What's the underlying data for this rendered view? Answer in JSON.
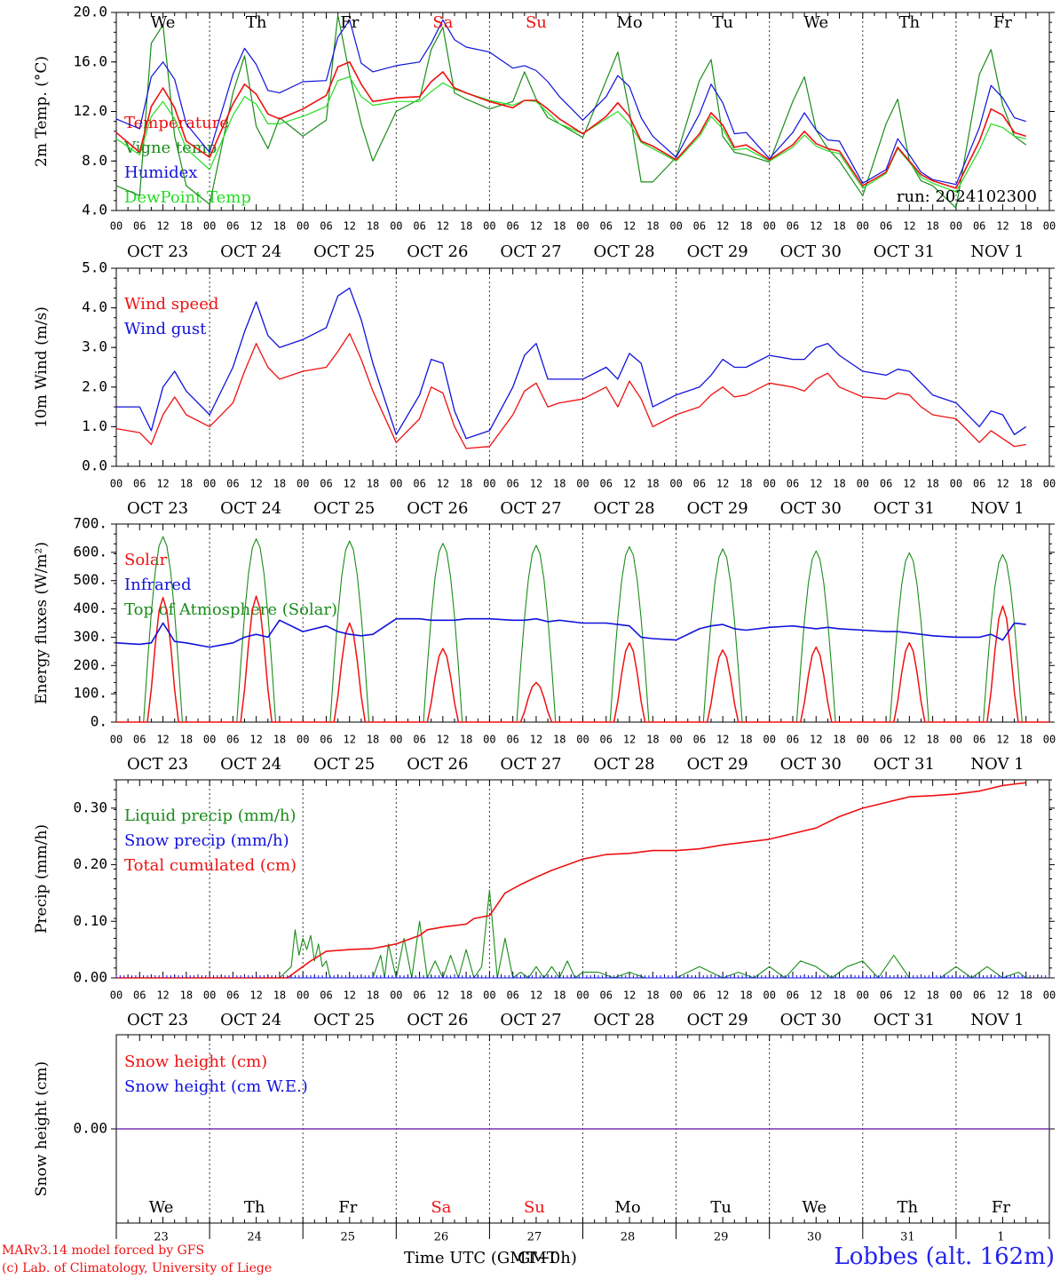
{
  "colors": {
    "red": "#ee1111",
    "green": "#1a8c1a",
    "blue": "#1111dd",
    "lime": "#22dd22",
    "purple": "#7733aa",
    "axis": "#000000"
  },
  "footer": {
    "credit1": "MARv3.14 model forced by GFS",
    "credit2": "(c) Lab. of Climatology, University of Liege",
    "xlabel": "Time UTC (GMT+0h)",
    "xlabel_overlay": "GMT",
    "station": "Lobbes (alt. 162m)"
  },
  "time_axis": {
    "hour_ticks": [
      "00",
      "06",
      "12",
      "18"
    ],
    "end_tick": "00",
    "dates": [
      "OCT 23",
      "OCT 24",
      "OCT 25",
      "OCT 26",
      "OCT 27",
      "OCT 28",
      "OCT 29",
      "OCT 30",
      "OCT 31",
      "NOV  1"
    ],
    "weekdays": [
      "We",
      "Th",
      "Fr",
      "Sa",
      "Su",
      "Mo",
      "Tu",
      "We",
      "Th",
      "Fr"
    ],
    "weekend_days": [
      "Sa",
      "Su"
    ],
    "day_numbers": [
      "23",
      "24",
      "25",
      "26",
      "27",
      "28",
      "29",
      "30",
      "31",
      "1"
    ]
  },
  "chart_data": [
    {
      "type": "line",
      "ylabel": "2m Temp. (°C)",
      "ylim": [
        4,
        20
      ],
      "yticks": [
        "4.0",
        "8.0",
        "12.0",
        "16.0",
        "20.0"
      ],
      "run_label": "run: 2024102300",
      "legend": [
        "Temperature",
        "Vigne temp",
        "Humidex",
        "DewPoint Temp"
      ],
      "x_hours": [
        0,
        6,
        9,
        12,
        15,
        18,
        24,
        30,
        33,
        36,
        39,
        42,
        48,
        54,
        57,
        60,
        63,
        66,
        72,
        78,
        81,
        84,
        87,
        90,
        96,
        102,
        105,
        108,
        111,
        114,
        120,
        126,
        129,
        132,
        135,
        138,
        144,
        150,
        153,
        156,
        159,
        162,
        168,
        174,
        177,
        180,
        183,
        186,
        192,
        198,
        201,
        204,
        207,
        210,
        216,
        222,
        225,
        228,
        231,
        234
      ],
      "series": [
        {
          "name": "Temperature",
          "color": "red",
          "values": [
            10.3,
            8.7,
            12.4,
            13.9,
            12.3,
            9.6,
            8.3,
            12.6,
            14.2,
            13.4,
            11.8,
            11.4,
            12.2,
            13.3,
            15.6,
            16.0,
            14.2,
            12.8,
            13.1,
            13.2,
            14.4,
            15.2,
            13.9,
            13.5,
            12.8,
            12.3,
            12.9,
            12.9,
            12.2,
            11.4,
            10.2,
            11.6,
            12.7,
            11.6,
            9.6,
            9.2,
            8.1,
            10.2,
            11.9,
            10.9,
            9.1,
            9.3,
            8.1,
            9.3,
            10.4,
            9.4,
            9.0,
            8.8,
            6.0,
            7.1,
            9.1,
            8.0,
            6.9,
            6.4,
            5.8,
            9.6,
            12.2,
            11.7,
            10.3,
            10.0
          ]
        },
        {
          "name": "Vigne temp",
          "color": "green",
          "values": [
            6.0,
            5.2,
            17.5,
            19.0,
            10.0,
            6.0,
            4.5,
            13.5,
            16.5,
            10.8,
            9.0,
            11.5,
            10.0,
            11.3,
            19.8,
            15.0,
            11.0,
            8.0,
            12.0,
            13.0,
            17.0,
            18.8,
            13.5,
            13.0,
            12.2,
            12.8,
            15.2,
            13.0,
            11.5,
            11.0,
            9.9,
            14.5,
            16.8,
            12.0,
            6.3,
            6.3,
            8.3,
            14.5,
            16.2,
            10.0,
            8.7,
            8.5,
            7.9,
            12.8,
            14.8,
            10.5,
            9.0,
            8.0,
            5.2,
            11.0,
            13.0,
            8.0,
            6.4,
            6.0,
            4.2,
            15.0,
            17.0,
            12.5,
            10.0,
            9.3
          ]
        },
        {
          "name": "Humidex",
          "color": "blue",
          "values": [
            11.4,
            10.6,
            14.8,
            16.0,
            14.6,
            11.0,
            8.7,
            15.0,
            17.1,
            15.8,
            13.7,
            13.5,
            14.4,
            14.5,
            18.0,
            19.4,
            15.9,
            15.2,
            15.7,
            16.0,
            17.5,
            19.4,
            17.8,
            17.2,
            16.8,
            15.5,
            15.7,
            15.3,
            14.4,
            13.2,
            11.3,
            13.2,
            14.9,
            14.0,
            11.5,
            10.0,
            8.3,
            11.8,
            14.2,
            12.7,
            10.2,
            10.3,
            8.2,
            10.3,
            11.9,
            10.5,
            9.7,
            9.6,
            6.2,
            7.3,
            9.8,
            8.5,
            7.1,
            6.5,
            6.1,
            10.7,
            14.1,
            13.1,
            11.5,
            11.2
          ]
        },
        {
          "name": "DewPoint Temp",
          "color": "lime",
          "values": [
            9.8,
            8.5,
            11.6,
            12.8,
            11.4,
            9.0,
            7.3,
            11.7,
            13.2,
            12.6,
            11.0,
            11.0,
            11.6,
            12.4,
            14.5,
            14.8,
            13.2,
            12.5,
            12.8,
            12.8,
            13.6,
            14.3,
            13.8,
            13.5,
            12.9,
            12.5,
            12.9,
            12.8,
            11.9,
            11.0,
            10.2,
            11.4,
            12.0,
            11.0,
            9.5,
            9.0,
            8.0,
            10.0,
            11.6,
            10.6,
            8.9,
            9.0,
            8.0,
            9.1,
            10.1,
            9.2,
            8.8,
            8.6,
            5.8,
            7.0,
            9.0,
            7.9,
            6.7,
            6.2,
            5.5,
            8.9,
            11.0,
            10.7,
            10.0,
            9.8
          ]
        }
      ]
    },
    {
      "type": "line",
      "ylabel": "10m Wind (m/s)",
      "ylim": [
        0,
        5
      ],
      "yticks": [
        "0.0",
        "1.0",
        "2.0",
        "3.0",
        "4.0",
        "5.0"
      ],
      "legend": [
        "Wind speed",
        "Wind gust"
      ],
      "x_hours": [
        0,
        6,
        9,
        12,
        15,
        18,
        24,
        30,
        33,
        36,
        39,
        42,
        48,
        54,
        57,
        60,
        63,
        66,
        72,
        78,
        81,
        84,
        87,
        90,
        96,
        102,
        105,
        108,
        111,
        114,
        120,
        126,
        129,
        132,
        135,
        138,
        144,
        150,
        153,
        156,
        159,
        162,
        168,
        174,
        177,
        180,
        183,
        186,
        192,
        198,
        201,
        204,
        207,
        210,
        216,
        222,
        225,
        228,
        231,
        234
      ],
      "series": [
        {
          "name": "Wind speed",
          "color": "red",
          "values": [
            0.95,
            0.85,
            0.55,
            1.3,
            1.75,
            1.3,
            1.0,
            1.6,
            2.4,
            3.1,
            2.5,
            2.2,
            2.4,
            2.5,
            2.9,
            3.35,
            2.7,
            1.9,
            0.6,
            1.2,
            2.0,
            1.85,
            1.0,
            0.45,
            0.5,
            1.3,
            1.9,
            2.1,
            1.5,
            1.6,
            1.7,
            2.0,
            1.5,
            2.15,
            1.7,
            1.0,
            1.3,
            1.5,
            1.8,
            2.0,
            1.75,
            1.8,
            2.1,
            2.0,
            1.9,
            2.2,
            2.35,
            2.0,
            1.75,
            1.7,
            1.85,
            1.8,
            1.5,
            1.3,
            1.2,
            0.6,
            0.9,
            0.7,
            0.5,
            0.55
          ]
        },
        {
          "name": "Wind gust",
          "color": "blue",
          "values": [
            1.5,
            1.5,
            0.9,
            2.0,
            2.4,
            1.9,
            1.3,
            2.5,
            3.4,
            4.15,
            3.3,
            3.0,
            3.2,
            3.5,
            4.3,
            4.5,
            3.7,
            2.6,
            0.8,
            1.8,
            2.7,
            2.6,
            1.4,
            0.7,
            0.9,
            2.0,
            2.8,
            3.1,
            2.2,
            2.2,
            2.2,
            2.5,
            2.2,
            2.85,
            2.6,
            1.5,
            1.8,
            2.0,
            2.3,
            2.7,
            2.5,
            2.5,
            2.8,
            2.7,
            2.7,
            3.0,
            3.1,
            2.8,
            2.4,
            2.3,
            2.45,
            2.4,
            2.1,
            1.8,
            1.6,
            1.0,
            1.4,
            1.3,
            0.8,
            1.0
          ]
        }
      ]
    },
    {
      "type": "line",
      "ylabel": "Energy fluxes (W/m²)",
      "ylim": [
        0,
        700
      ],
      "yticks": [
        "0.",
        "100.",
        "200.",
        "300.",
        "400.",
        "500.",
        "600.",
        "700."
      ],
      "legend": [
        "Solar",
        "Infrared",
        "Top of Atmosphere (Solar)"
      ],
      "x_hours": [
        0,
        6,
        9,
        12,
        15,
        18,
        24,
        30,
        33,
        36,
        39,
        42,
        48,
        54,
        57,
        60,
        63,
        66,
        72,
        78,
        81,
        84,
        87,
        90,
        96,
        102,
        105,
        108,
        111,
        114,
        120,
        126,
        129,
        132,
        135,
        138,
        144,
        150,
        153,
        156,
        159,
        162,
        168,
        174,
        177,
        180,
        183,
        186,
        192,
        198,
        201,
        204,
        207,
        210,
        216,
        222,
        225,
        228,
        231,
        234
      ],
      "daily_peaks": {
        "solar": [
          440,
          445,
          350,
          260,
          140,
          280,
          255,
          265,
          280,
          410
        ],
        "toa": [
          655,
          648,
          640,
          632,
          625,
          620,
          612,
          605,
          598,
          592
        ]
      },
      "series": [
        {
          "name": "Infrared",
          "color": "blue",
          "values": [
            280,
            275,
            280,
            350,
            285,
            280,
            265,
            280,
            300,
            310,
            300,
            360,
            320,
            340,
            320,
            310,
            305,
            310,
            365,
            365,
            360,
            360,
            360,
            365,
            365,
            360,
            360,
            365,
            355,
            360,
            350,
            350,
            345,
            340,
            300,
            295,
            290,
            330,
            340,
            345,
            330,
            325,
            335,
            340,
            335,
            330,
            335,
            330,
            325,
            320,
            320,
            315,
            310,
            305,
            300,
            300,
            310,
            290,
            350,
            345
          ]
        }
      ]
    },
    {
      "type": "line",
      "ylabel": "Precip (mm/h)",
      "ylim": [
        0,
        0.35
      ],
      "yticks": [
        "0.00",
        "0.10",
        "0.20",
        "0.30"
      ],
      "legend": [
        "Liquid precip (mm/h)",
        "Snow precip (mm/h)",
        "Total cumulated (cm)"
      ],
      "series": [
        {
          "name": "Liquid precip (mm/h)",
          "color": "green",
          "x": [
            0,
            42,
            45,
            46,
            47,
            48,
            49,
            50,
            51,
            52,
            53,
            54,
            55,
            60,
            66,
            68,
            69,
            70,
            72,
            74,
            76,
            78,
            80,
            82,
            84,
            86,
            88,
            90,
            92,
            94,
            96,
            98,
            100,
            102,
            104,
            106,
            108,
            110,
            112,
            114,
            116,
            118,
            120,
            124,
            128,
            132,
            136,
            140,
            144,
            150,
            156,
            160,
            164,
            168,
            172,
            176,
            180,
            184,
            188,
            192,
            196,
            200,
            204,
            208,
            212,
            216,
            220,
            224,
            228,
            232,
            234
          ],
          "values": [
            0.0,
            0.0,
            0.02,
            0.085,
            0.04,
            0.07,
            0.05,
            0.075,
            0.03,
            0.06,
            0.02,
            0.03,
            0.0,
            0.0,
            0.0,
            0.04,
            0.0,
            0.06,
            0.0,
            0.07,
            0.0,
            0.1,
            0.0,
            0.03,
            0.0,
            0.04,
            0.0,
            0.05,
            0.0,
            0.02,
            0.155,
            0.0,
            0.07,
            0.0,
            0.01,
            0.0,
            0.02,
            0.0,
            0.02,
            0.0,
            0.03,
            0.0,
            0.01,
            0.01,
            0.0,
            0.01,
            0.0,
            0.0,
            0.0,
            0.02,
            0.0,
            0.01,
            0.0,
            0.02,
            0.0,
            0.03,
            0.02,
            0.0,
            0.02,
            0.03,
            0.0,
            0.04,
            0.0,
            0.0,
            0.0,
            0.02,
            0.0,
            0.02,
            0.0,
            0.01,
            0.0
          ]
        },
        {
          "name": "Snow precip (mm/h)",
          "color": "blue",
          "x": [
            0,
            234
          ],
          "values": [
            0.0,
            0.0
          ]
        },
        {
          "name": "Total cumulated (cm)",
          "color": "red",
          "x": [
            0,
            44,
            46,
            48,
            50,
            54,
            60,
            66,
            72,
            78,
            80,
            84,
            90,
            92,
            96,
            98,
            100,
            104,
            108,
            112,
            116,
            120,
            126,
            132,
            138,
            144,
            150,
            156,
            162,
            168,
            174,
            180,
            186,
            192,
            198,
            204,
            210,
            216,
            222,
            228,
            234
          ],
          "values": [
            0.0,
            0.0,
            0.01,
            0.02,
            0.03,
            0.047,
            0.05,
            0.052,
            0.06,
            0.075,
            0.085,
            0.09,
            0.095,
            0.105,
            0.11,
            0.13,
            0.15,
            0.165,
            0.178,
            0.19,
            0.2,
            0.21,
            0.218,
            0.22,
            0.225,
            0.225,
            0.228,
            0.235,
            0.24,
            0.245,
            0.255,
            0.265,
            0.285,
            0.3,
            0.31,
            0.32,
            0.322,
            0.325,
            0.33,
            0.34,
            0.345
          ]
        }
      ]
    },
    {
      "type": "line",
      "ylabel": "Snow height (cm)",
      "ylim": [
        -1,
        1
      ],
      "yticks": [
        "0.00"
      ],
      "legend": [
        "Snow height (cm)",
        "Snow height (cm W.E.)"
      ],
      "series": [
        {
          "name": "Snow height (cm)",
          "color": "red",
          "x": [
            0,
            234
          ],
          "values": [
            0,
            0
          ]
        },
        {
          "name": "Snow height (cm W.E.)",
          "color": "blue",
          "x": [
            0,
            234
          ],
          "values": [
            0,
            0
          ]
        }
      ]
    }
  ]
}
